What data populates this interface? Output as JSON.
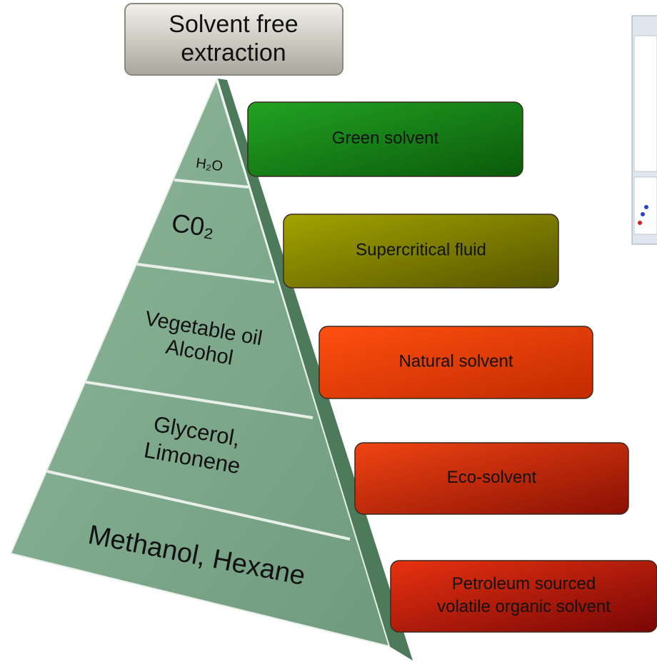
{
  "top_box": {
    "lines": [
      "Solvent free",
      "extraction"
    ]
  },
  "pyramid_levels": [
    [
      "H₂O"
    ],
    [
      "C0₂"
    ],
    [
      "Vegetable oil",
      "Alcohol"
    ],
    [
      "Glycerol,",
      "Limonene"
    ],
    [
      "Methanol, Hexane"
    ]
  ],
  "solvent_classes": [
    [
      "Green solvent"
    ],
    [
      "Supercritical fluid"
    ],
    [
      "Natural solvent"
    ],
    [
      "Eco-solvent"
    ],
    [
      "Petroleum sourced",
      "volatile organic solvent"
    ]
  ]
}
